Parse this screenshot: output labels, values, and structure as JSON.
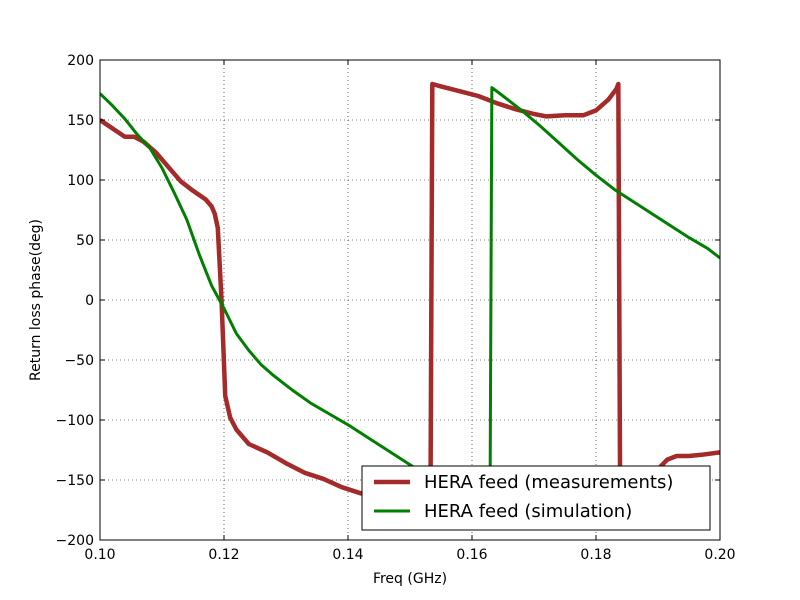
{
  "chart_data": {
    "type": "line",
    "title": "",
    "xlabel": "Freq (GHz)",
    "ylabel": "Return loss phase(deg)",
    "xlim": [
      0.1,
      0.2
    ],
    "ylim": [
      -200,
      200
    ],
    "x_ticks": [
      0.1,
      0.12,
      0.14,
      0.16,
      0.18,
      0.2
    ],
    "x_tick_labels": [
      "0.10",
      "0.12",
      "0.14",
      "0.16",
      "0.18",
      "0.20"
    ],
    "y_ticks": [
      -200,
      -150,
      -100,
      -50,
      0,
      50,
      100,
      150,
      200
    ],
    "y_tick_labels": [
      "−200",
      "−150",
      "−100",
      "−50",
      "0",
      "50",
      "100",
      "150",
      "200"
    ],
    "grid": true,
    "legend_position": "lower-right",
    "series": [
      {
        "name": "HERA feed (measurements)",
        "color": "#a52a2a",
        "points": [
          [
            0.1,
            150
          ],
          [
            0.102,
            143
          ],
          [
            0.104,
            136
          ],
          [
            0.1055,
            136
          ],
          [
            0.107,
            132
          ],
          [
            0.109,
            123
          ],
          [
            0.111,
            111
          ],
          [
            0.113,
            99
          ],
          [
            0.115,
            91
          ],
          [
            0.117,
            84
          ],
          [
            0.118,
            78
          ],
          [
            0.1185,
            72
          ],
          [
            0.119,
            60
          ],
          [
            0.1193,
            30
          ],
          [
            0.1196,
            0
          ],
          [
            0.1199,
            -40
          ],
          [
            0.1202,
            -80
          ],
          [
            0.121,
            -98
          ],
          [
            0.122,
            -108
          ],
          [
            0.124,
            -120
          ],
          [
            0.127,
            -127
          ],
          [
            0.13,
            -136
          ],
          [
            0.133,
            -144
          ],
          [
            0.136,
            -149
          ],
          [
            0.139,
            -156
          ],
          [
            0.142,
            -161
          ],
          [
            0.145,
            -165
          ],
          [
            0.148,
            -168
          ],
          [
            0.151,
            -170
          ],
          [
            0.1533,
            -171
          ],
          [
            0.1536,
            180
          ],
          [
            0.155,
            178
          ],
          [
            0.158,
            174
          ],
          [
            0.161,
            170
          ],
          [
            0.164,
            164
          ],
          [
            0.167,
            159
          ],
          [
            0.17,
            155
          ],
          [
            0.172,
            153
          ],
          [
            0.175,
            154
          ],
          [
            0.178,
            154
          ],
          [
            0.18,
            158
          ],
          [
            0.182,
            167
          ],
          [
            0.1833,
            176
          ],
          [
            0.1836,
            180
          ],
          [
            0.1839,
            -172
          ],
          [
            0.186,
            -166
          ],
          [
            0.188,
            -155
          ],
          [
            0.19,
            -141
          ],
          [
            0.1915,
            -133
          ],
          [
            0.193,
            -130
          ],
          [
            0.195,
            -130
          ],
          [
            0.197,
            -129
          ],
          [
            0.2,
            -127
          ]
        ]
      },
      {
        "name": "HERA feed (simulation)",
        "color": "#007f00",
        "points": [
          [
            0.1,
            172
          ],
          [
            0.102,
            162
          ],
          [
            0.104,
            151
          ],
          [
            0.106,
            138
          ],
          [
            0.108,
            127
          ],
          [
            0.11,
            110
          ],
          [
            0.112,
            89
          ],
          [
            0.114,
            67
          ],
          [
            0.116,
            38
          ],
          [
            0.118,
            12
          ],
          [
            0.12,
            -7
          ],
          [
            0.122,
            -28
          ],
          [
            0.124,
            -42
          ],
          [
            0.126,
            -54
          ],
          [
            0.128,
            -63
          ],
          [
            0.131,
            -75
          ],
          [
            0.134,
            -86
          ],
          [
            0.137,
            -95
          ],
          [
            0.14,
            -104
          ],
          [
            0.143,
            -114
          ],
          [
            0.146,
            -124
          ],
          [
            0.149,
            -134
          ],
          [
            0.152,
            -144
          ],
          [
            0.155,
            -155
          ],
          [
            0.158,
            -165
          ],
          [
            0.161,
            -173
          ],
          [
            0.1629,
            -180
          ],
          [
            0.1632,
            177
          ],
          [
            0.165,
            170
          ],
          [
            0.168,
            158
          ],
          [
            0.171,
            145
          ],
          [
            0.174,
            131
          ],
          [
            0.177,
            117
          ],
          [
            0.18,
            104
          ],
          [
            0.183,
            92
          ],
          [
            0.186,
            82
          ],
          [
            0.189,
            72
          ],
          [
            0.192,
            62
          ],
          [
            0.195,
            52
          ],
          [
            0.198,
            43
          ],
          [
            0.2,
            35
          ]
        ]
      }
    ]
  }
}
